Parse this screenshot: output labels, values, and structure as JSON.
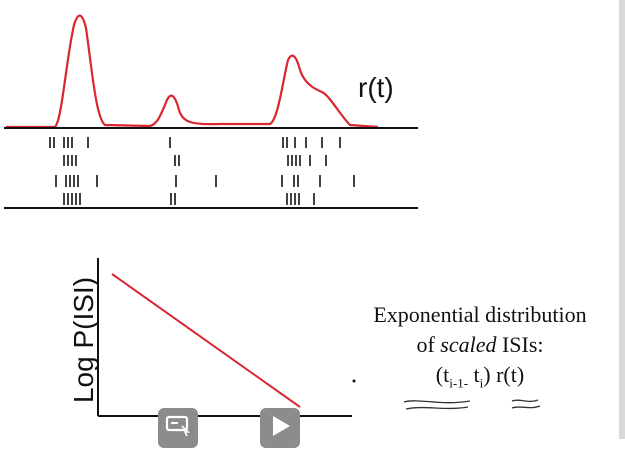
{
  "labels": {
    "rate": "r(t)",
    "y_axis": "Log P(ISI)"
  },
  "note": {
    "line1": "Exponential distribution",
    "line2_pre": "of ",
    "line2_italic": "scaled",
    "line2_post": " ISIs:",
    "formula_open": "(t",
    "sub1": "i-1-",
    "formula_mid": " t",
    "sub2": "i",
    "formula_close": ") r(t)"
  },
  "colors": {
    "curve": "#d9262f",
    "ink": "#111111",
    "player_button": "#8c8c8c"
  },
  "icons": {
    "captions": "captions-icon",
    "play": "play-icon"
  }
}
